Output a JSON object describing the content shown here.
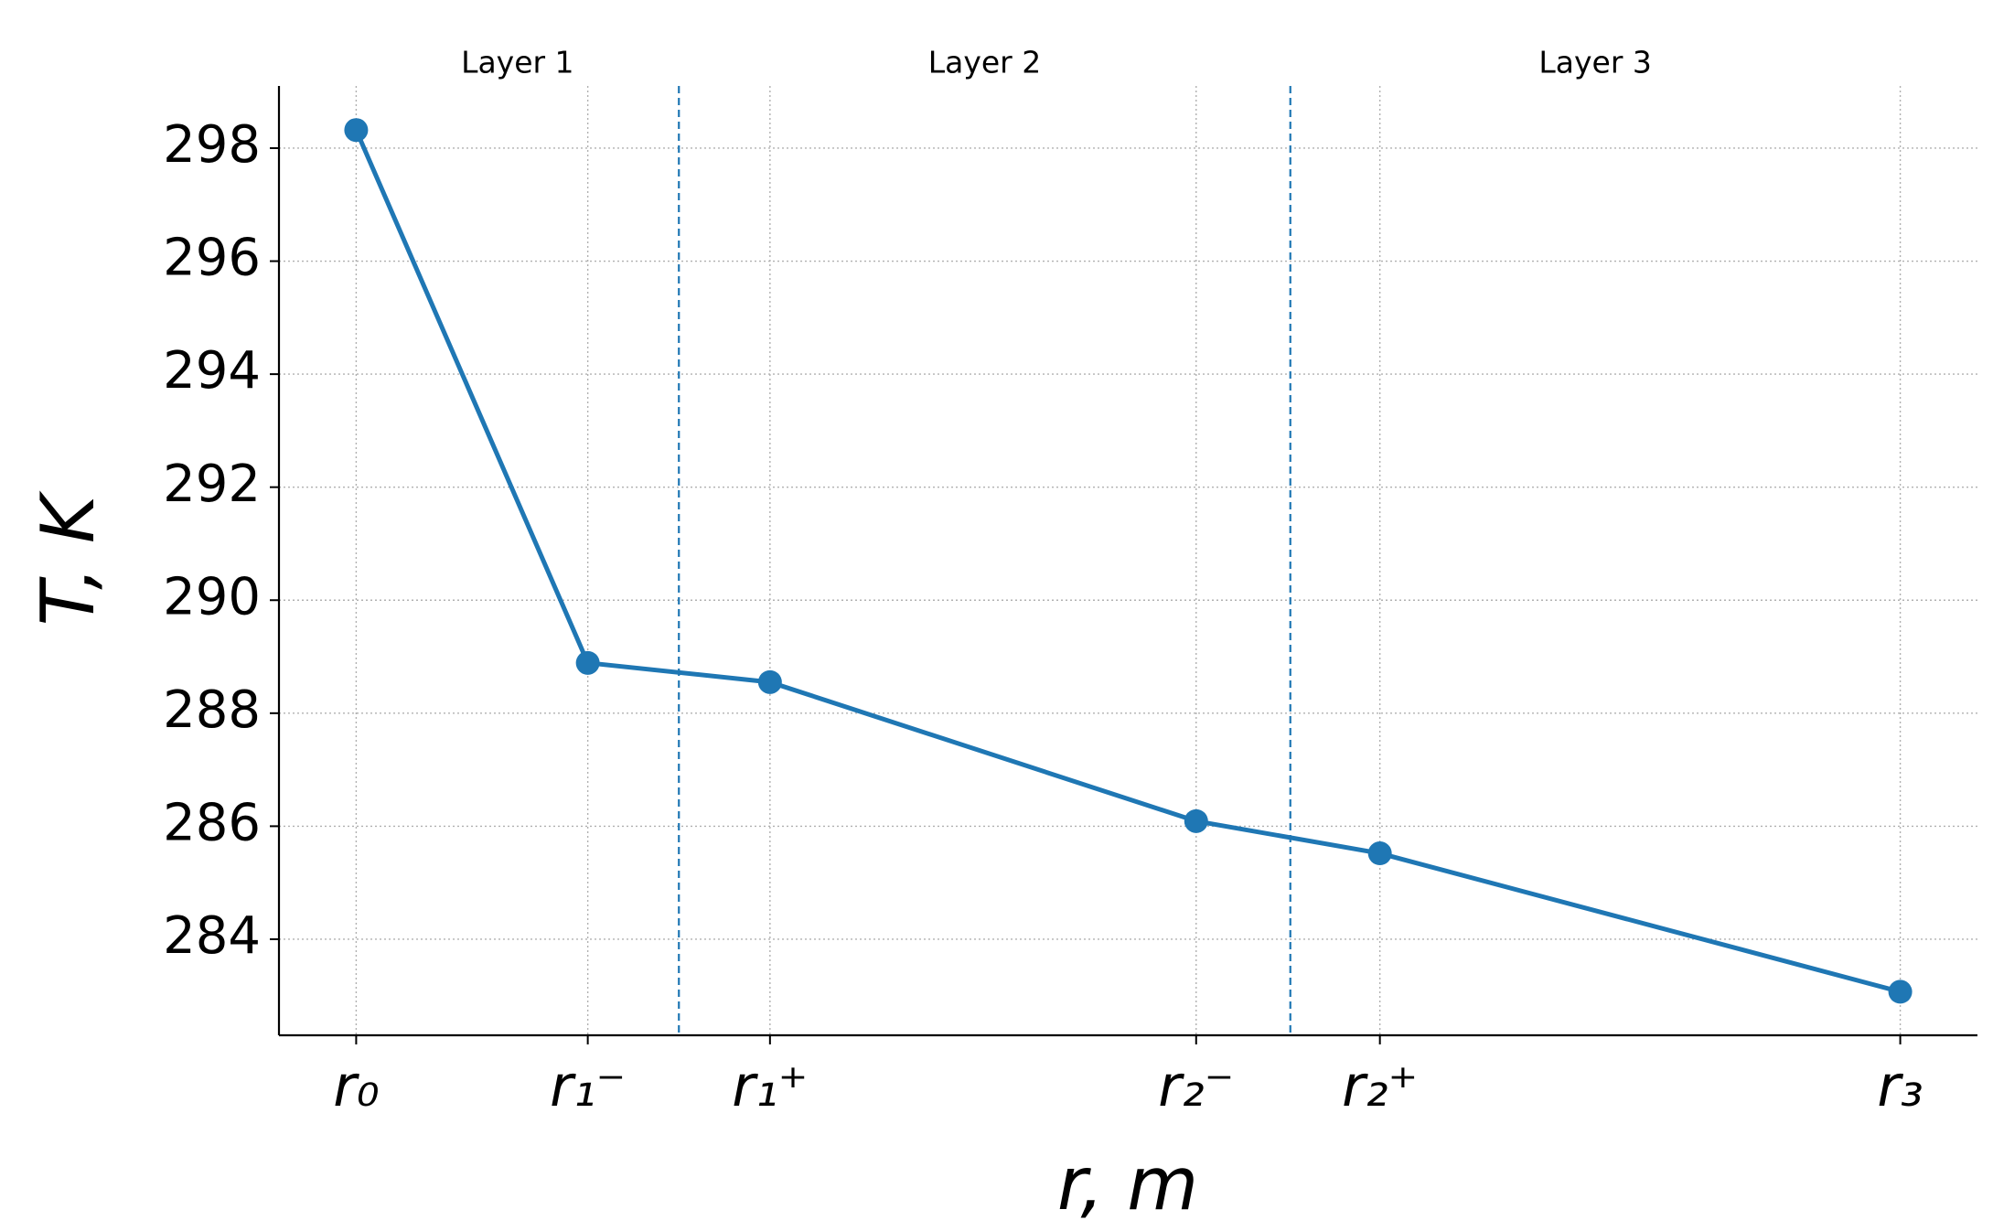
{
  "chart_data": {
    "type": "line",
    "x_label": "r, m",
    "y_label": "T, K",
    "x": [
      0,
      15.0,
      26.8,
      54.4,
      66.3,
      100
    ],
    "series": [
      {
        "color": "#1f77b4",
        "values": [
          298.32,
          288.89,
          288.55,
          286.09,
          285.52,
          283.07
        ]
      }
    ],
    "xlim": [
      -5,
      105
    ],
    "xticks": [
      {
        "value": 0,
        "label": "r₀"
      },
      {
        "value": 15.0,
        "label": "r₁⁻"
      },
      {
        "value": 26.8,
        "label": "r₁⁺"
      },
      {
        "value": 54.4,
        "label": "r₂⁻"
      },
      {
        "value": 66.3,
        "label": "r₂⁺"
      },
      {
        "value": 100,
        "label": "r₃"
      }
    ],
    "ylim": [
      282.3,
      299.1
    ],
    "yticks": [
      284,
      286,
      288,
      290,
      292,
      294,
      296,
      298
    ],
    "grid": true,
    "layer_boundaries": [
      20.9,
      60.5
    ],
    "boundary_color": "#1f77b4",
    "layers": [
      "Layer 1",
      "Layer 2",
      "Layer 3"
    ]
  }
}
